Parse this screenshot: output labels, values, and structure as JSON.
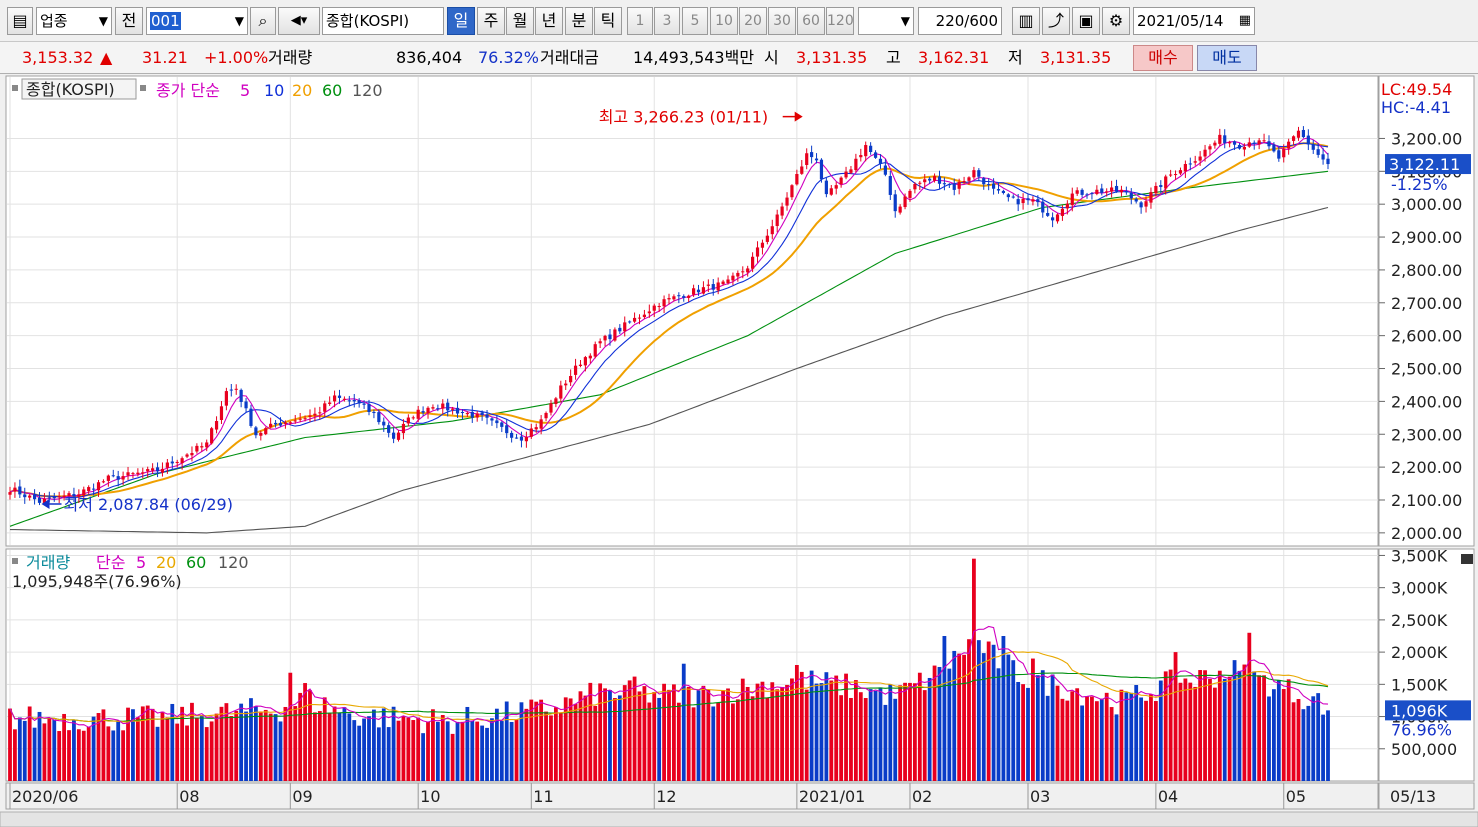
{
  "toolbar": {
    "market": "업종",
    "prev_label": "전",
    "code": "001",
    "index_name": "종합(KOSPI)",
    "periods": [
      "일",
      "주",
      "월",
      "년",
      "분",
      "틱"
    ],
    "selected_period": "일",
    "minute_options": [
      "1",
      "3",
      "5",
      "10",
      "20",
      "30",
      "60",
      "120"
    ],
    "count": "220/600",
    "date": "2021/05/14"
  },
  "quote": {
    "price": "3,153.32",
    "arrow": "▲",
    "change": "31.21",
    "change_pct": "+1.00%",
    "volume_label": "거래량",
    "volume": "836,404",
    "volume_pct": "76.32%",
    "amount_label": "거래대금",
    "amount": "14,493,543백만",
    "open_label": "시",
    "open": "3,131.35",
    "high_label": "고",
    "high": "3,162.31",
    "low_label": "저",
    "low": "3,131.35",
    "buy_label": "매수",
    "sell_label": "매도"
  },
  "colors": {
    "up": "#e8001e",
    "down": "#0a3cc8",
    "ma5": "#d000c0",
    "ma10": "#1030d8",
    "ma20": "#f0a000",
    "ma60": "#009010",
    "ma120": "#555555",
    "vol_ma5": "#d000c0",
    "vol_ma20": "#e8a800",
    "vol_ma60": "#009010"
  },
  "chart_data": [
    {
      "type": "candlestick",
      "legend": {
        "name": "종합(KOSPI)",
        "ma_label": "종가 단순",
        "periods": [
          "5",
          "10",
          "20",
          "60",
          "120"
        ]
      },
      "annotations": {
        "high": "최고 3,266.23 (01/11)",
        "low": "최저 2,087.84 (06/29)"
      },
      "y_ticks": [
        "3,200.00",
        "3,100.00",
        "3,000.00",
        "2,900.00",
        "2,800.00",
        "2,700.00",
        "2,600.00",
        "2,500.00",
        "2,400.00",
        "2,300.00",
        "2,200.00",
        "2,100.00",
        "2,000.00"
      ],
      "ylim": [
        1960,
        3390
      ],
      "lc": "LC:49.54",
      "hc": "HC:-4.41",
      "current_value": "3,122.11",
      "current_pct": "-1.25%",
      "close_path": [
        [
          0,
          2135
        ],
        [
          6,
          2095
        ],
        [
          14,
          2120
        ],
        [
          20,
          2165
        ],
        [
          30,
          2190
        ],
        [
          36,
          2240
        ],
        [
          40,
          2270
        ],
        [
          44,
          2430
        ],
        [
          46,
          2440
        ],
        [
          50,
          2300
        ],
        [
          54,
          2330
        ],
        [
          58,
          2345
        ],
        [
          62,
          2360
        ],
        [
          66,
          2410
        ],
        [
          70,
          2400
        ],
        [
          74,
          2360
        ],
        [
          78,
          2290
        ],
        [
          82,
          2360
        ],
        [
          86,
          2390
        ],
        [
          90,
          2375
        ],
        [
          96,
          2350
        ],
        [
          102,
          2300
        ],
        [
          104,
          2290
        ],
        [
          108,
          2340
        ],
        [
          112,
          2440
        ],
        [
          116,
          2520
        ],
        [
          120,
          2580
        ],
        [
          126,
          2640
        ],
        [
          132,
          2700
        ],
        [
          140,
          2740
        ],
        [
          146,
          2760
        ],
        [
          150,
          2810
        ],
        [
          156,
          2960
        ],
        [
          162,
          3150
        ],
        [
          164,
          3140
        ],
        [
          166,
          3020
        ],
        [
          170,
          3090
        ],
        [
          174,
          3180
        ],
        [
          178,
          3090
        ],
        [
          180,
          2980
        ],
        [
          184,
          3060
        ],
        [
          188,
          3080
        ],
        [
          192,
          3050
        ],
        [
          196,
          3100
        ],
        [
          200,
          3040
        ],
        [
          204,
          3010
        ],
        [
          208,
          3010
        ],
        [
          212,
          2960
        ],
        [
          216,
          3030
        ],
        [
          220,
          3040
        ],
        [
          226,
          3040
        ],
        [
          230,
          3000
        ],
        [
          236,
          3090
        ],
        [
          242,
          3150
        ],
        [
          246,
          3200
        ],
        [
          250,
          3180
        ],
        [
          254,
          3200
        ],
        [
          258,
          3140
        ],
        [
          262,
          3220
        ],
        [
          266,
          3150
        ],
        [
          268,
          3122
        ]
      ],
      "ma_levels": {
        "ma60": [
          [
            0,
            2020
          ],
          [
            30,
            2180
          ],
          [
            60,
            2290
          ],
          [
            90,
            2340
          ],
          [
            120,
            2420
          ],
          [
            150,
            2600
          ],
          [
            180,
            2850
          ],
          [
            210,
            2990
          ],
          [
            240,
            3050
          ],
          [
            268,
            3100
          ]
        ],
        "ma120": [
          [
            0,
            2010
          ],
          [
            40,
            2000
          ],
          [
            60,
            2020
          ],
          [
            80,
            2130
          ],
          [
            100,
            2210
          ],
          [
            130,
            2330
          ],
          [
            160,
            2500
          ],
          [
            190,
            2660
          ],
          [
            220,
            2790
          ],
          [
            250,
            2920
          ],
          [
            268,
            2990
          ]
        ]
      },
      "x_labels": [
        {
          "label": "2020/06",
          "index": 0
        },
        {
          "label": "08",
          "index": 34
        },
        {
          "label": "09",
          "index": 57
        },
        {
          "label": "10",
          "index": 83
        },
        {
          "label": "11",
          "index": 106
        },
        {
          "label": "12",
          "index": 131
        },
        {
          "label": "2021/01",
          "index": 160
        },
        {
          "label": "02",
          "index": 183
        },
        {
          "label": "03",
          "index": 207
        },
        {
          "label": "04",
          "index": 233
        },
        {
          "label": "05",
          "index": 259
        }
      ],
      "x_last_label": "05/13"
    },
    {
      "type": "bar",
      "legend": {
        "name": "거래량",
        "ma_label": "단순",
        "periods": [
          "5",
          "20",
          "60",
          "120"
        ],
        "info": "1,095,948주(76.96%)"
      },
      "y_ticks": [
        "3,500K",
        "3,000K",
        "2,500K",
        "2,000K",
        "1,500K",
        "1,000K",
        "500,000"
      ],
      "ylim": [
        0,
        3600
      ],
      "current_value": "1,096K",
      "current_pct": "76.96%",
      "level_path": [
        [
          0,
          950
        ],
        [
          30,
          950
        ],
        [
          55,
          1100
        ],
        [
          60,
          1250
        ],
        [
          70,
          1000
        ],
        [
          90,
          900
        ],
        [
          110,
          1100
        ],
        [
          120,
          1350
        ],
        [
          140,
          1300
        ],
        [
          160,
          1550
        ],
        [
          170,
          1450
        ],
        [
          180,
          1300
        ],
        [
          190,
          1700
        ],
        [
          196,
          2200
        ],
        [
          200,
          1900
        ],
        [
          206,
          1600
        ],
        [
          216,
          1400
        ],
        [
          226,
          1200
        ],
        [
          236,
          1500
        ],
        [
          244,
          1600
        ],
        [
          248,
          1700
        ],
        [
          256,
          1500
        ],
        [
          268,
          1150
        ]
      ],
      "spikes": [
        {
          "index": 57,
          "value": 1680
        },
        {
          "index": 60,
          "value": 1520
        },
        {
          "index": 127,
          "value": 1620
        },
        {
          "index": 137,
          "value": 1820
        },
        {
          "index": 160,
          "value": 1800
        },
        {
          "index": 190,
          "value": 2250
        },
        {
          "index": 196,
          "value": 3450
        },
        {
          "index": 202,
          "value": 2250
        },
        {
          "index": 208,
          "value": 1900
        },
        {
          "index": 237,
          "value": 2000
        },
        {
          "index": 252,
          "value": 2300
        }
      ]
    }
  ]
}
